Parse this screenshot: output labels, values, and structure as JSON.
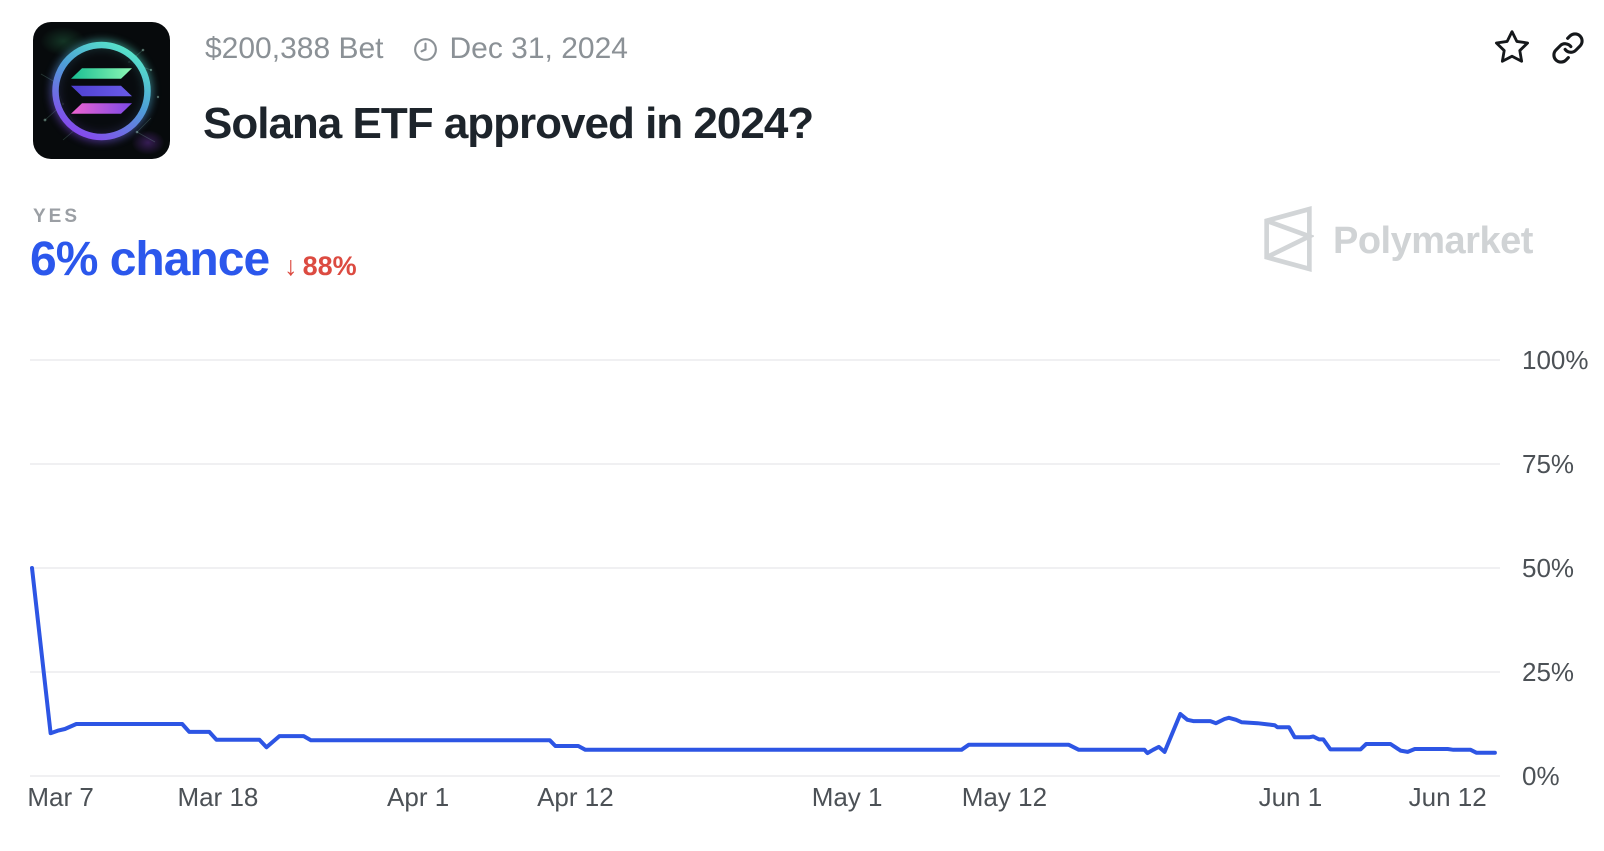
{
  "market": {
    "bet_amount": "$200,388 Bet",
    "end_date": "Dec 31, 2024",
    "title": "Solana ETF approved in 2024?",
    "outcome_label": "YES",
    "chance": "6% chance",
    "change_arrow": "↓",
    "change_value": "88%"
  },
  "watermark": {
    "brand": "Polymarket"
  },
  "icons": {
    "clock": "clock-icon",
    "star": "star-icon",
    "link": "link-icon",
    "polymarket_mark": "polymarket-logo-icon",
    "solana_logo": "solana-logo-icon",
    "down_arrow": "down-arrow-icon"
  },
  "colors": {
    "accent_blue": "#2B57EC",
    "change_red": "#DC4B41",
    "line_blue": "#2D55E4",
    "grid": "#ECECEE",
    "axis_label": "#4C5156",
    "meta_gray": "#8B9196",
    "title_dark": "#1D242B",
    "yes_gray": "#9B9FA4",
    "watermark_gray": "#D0D3D5"
  },
  "chart_data": {
    "type": "line",
    "title": "",
    "series_name": "YES probability",
    "line_color": "#2D55E4",
    "grid": true,
    "legend": "none",
    "final_value_pct": 6,
    "y_axis": {
      "range": [
        0,
        100
      ],
      "ticks": [
        {
          "label": "100%",
          "value": 100
        },
        {
          "label": "75%",
          "value": 75
        },
        {
          "label": "50%",
          "value": 50
        },
        {
          "label": "25%",
          "value": 25
        },
        {
          "label": "0%",
          "value": 0
        }
      ]
    },
    "x_axis": {
      "unit": "days since Mar 5, 2024",
      "ticks": [
        {
          "label": "Mar 7",
          "day": 2
        },
        {
          "label": "Mar 18",
          "day": 13
        },
        {
          "label": "Apr 1",
          "day": 27
        },
        {
          "label": "Apr 12",
          "day": 38
        },
        {
          "label": "May 1",
          "day": 57
        },
        {
          "label": "May 12",
          "day": 68
        },
        {
          "label": "Jun 1",
          "day": 88
        },
        {
          "label": "Jun 12",
          "day": 99
        }
      ]
    },
    "points": [
      [
        0,
        50
      ],
      [
        1.3,
        10.3
      ],
      [
        1.8,
        10.9
      ],
      [
        2.3,
        11.3
      ],
      [
        3.1,
        12.5
      ],
      [
        10.5,
        12.5
      ],
      [
        11,
        10.6
      ],
      [
        12.4,
        10.6
      ],
      [
        12.9,
        8.7
      ],
      [
        15.9,
        8.7
      ],
      [
        16.4,
        6.9
      ],
      [
        17.3,
        9.6
      ],
      [
        19,
        9.6
      ],
      [
        19.5,
        8.6
      ],
      [
        36.2,
        8.6
      ],
      [
        36.6,
        7.2
      ],
      [
        38.2,
        7.2
      ],
      [
        38.7,
        6.3
      ],
      [
        65,
        6.3
      ],
      [
        65.5,
        7.5
      ],
      [
        72.5,
        7.5
      ],
      [
        73.2,
        6.3
      ],
      [
        77.8,
        6.3
      ],
      [
        78,
        5.5
      ],
      [
        78.4,
        6.3
      ],
      [
        78.8,
        7
      ],
      [
        79.2,
        5.8
      ],
      [
        80.3,
        14.9
      ],
      [
        80.8,
        13.5
      ],
      [
        81.2,
        13.2
      ],
      [
        82.4,
        13.2
      ],
      [
        82.8,
        12.7
      ],
      [
        83.4,
        13.7
      ],
      [
        83.7,
        14
      ],
      [
        84.2,
        13.5
      ],
      [
        84.6,
        12.9
      ],
      [
        85.7,
        12.7
      ],
      [
        86.4,
        12.4
      ],
      [
        86.9,
        12.2
      ],
      [
        87.1,
        11.7
      ],
      [
        87.9,
        11.7
      ],
      [
        88.3,
        9.3
      ],
      [
        89.3,
        9.3
      ],
      [
        89.6,
        9.5
      ],
      [
        90,
        8.8
      ],
      [
        90.3,
        8.8
      ],
      [
        90.8,
        6.4
      ],
      [
        92.9,
        6.4
      ],
      [
        93.3,
        7.7
      ],
      [
        95,
        7.7
      ],
      [
        95.7,
        6.1
      ],
      [
        96.2,
        5.8
      ],
      [
        96.7,
        6.5
      ],
      [
        99,
        6.5
      ],
      [
        99.4,
        6.3
      ],
      [
        100.6,
        6.3
      ],
      [
        101,
        5.6
      ],
      [
        102.3,
        5.6
      ]
    ]
  }
}
